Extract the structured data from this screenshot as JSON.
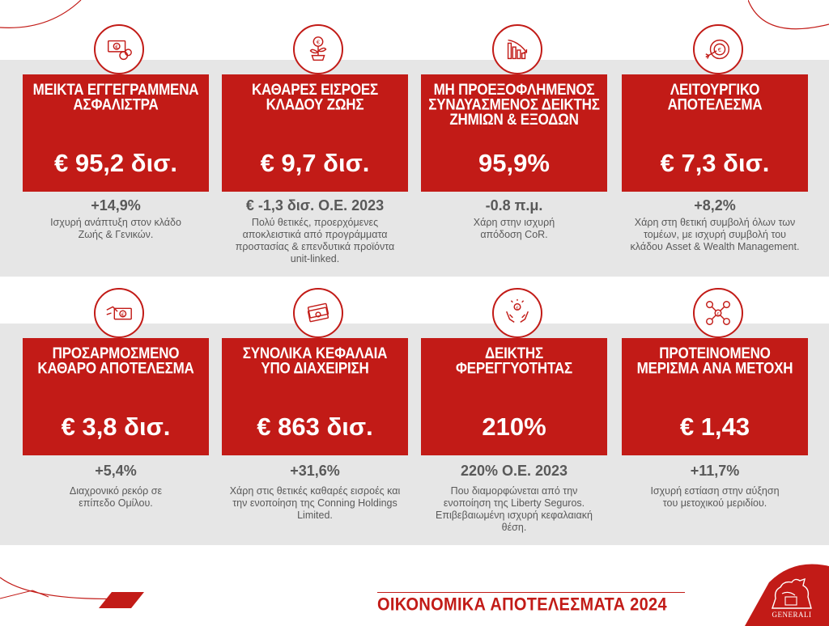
{
  "cards": [
    {
      "title": "ΜΕΙΚΤΑ ΕΓΓΕΓΡΑΜΜΕΝΑ ΑΣΦΑΛΙΣΤΡΑ",
      "value": "€ 95,2 δισ.",
      "stat": "+14,9%",
      "desc": "Ισχυρή ανάπτυξη στον κλάδο Ζωής & Γενικών.",
      "icon": "euro-notes-icon"
    },
    {
      "title": "ΚΑΘΑΡΕΣ ΕΙΣΡΟΕΣ ΚΛΑΔΟΥ ΖΩΗΣ",
      "value": "€ 9,7 δισ.",
      "stat": "€ -1,3 δισ. Ο.Ε. 2023",
      "desc": "Πολύ θετικές, προερχόμενες αποκλειστικά από προγράμματα προστασίας & επενδυτικά προϊόντα unit-linked.",
      "icon": "euro-plant-icon"
    },
    {
      "title": "ΜΗ ΠΡΟΕΞΟΦΛΗΜΕΝΟΣ ΣΥΝΔΥΑΣΜΕΝΟΣ ΔΕΙΚΤΗΣ ΖΗΜΙΩΝ & ΕΞΟΔΩΝ",
      "value": "95,9%",
      "stat": "-0.8 π.μ.",
      "desc": "Χάρη στην ισχυρή απόδοση CoR.",
      "icon": "declining-bars-icon"
    },
    {
      "title": "ΛΕΙΤΟΥΡΓΙΚΟ ΑΠΟΤΕΛΕΣΜΑ",
      "value": "€ 7,3 δισ.",
      "stat": "+8,2%",
      "desc": "Χάρη στη θετική συμβολή όλων των τομέων, με ισχυρή συμβολή του κλάδου Asset & Wealth Management.",
      "icon": "euro-target-icon"
    },
    {
      "title": "ΠΡΟΣΑΡΜΟΣΜΕΝΟ ΚΑΘΑΡΟ ΑΠΟΤΕΛΕΣΜΑ",
      "value": "€ 3,8 δισ.",
      "stat": "+5,4%",
      "desc": "Διαχρονικό ρεκόρ σε επίπεδο Ομίλου.",
      "icon": "hand-euro-note-icon"
    },
    {
      "title": "ΣΥΝΟΛΙΚΑ ΚΕΦΑΛΑΙΑ ΥΠΟ ΔΙΑΧΕΙΡΙΣΗ",
      "value": "€ 863 δισ.",
      "stat": "+31,6%",
      "desc": "Χάρη στις θετικές καθαρές εισροές και την ενοποίηση της Conning Holdings Limited.",
      "icon": "cash-stack-icon"
    },
    {
      "title": "ΔΕΙΚΤΗΣ ΦΕΡΕΓΓΥΟΤΗΤΑΣ",
      "value": "210%",
      "stat": "220% Ο.Ε. 2023",
      "desc": "Που διαμορφώνεται από την ενοποίηση της Liberty Seguros. Επιβεβαιωμένη ισχυρή κεφαλαιακή θέση.",
      "icon": "hands-euro-icon"
    },
    {
      "title": "ΠΡΟΤΕΙΝΟΜΕΝΟ ΜΕΡΙΣΜΑ ΑΝΑ ΜΕΤΟΧΗ",
      "value": "€ 1,43",
      "stat": "+11,7%",
      "desc": "Ισχυρή εστίαση στην αύξηση του μετοχικού μεριδίου.",
      "icon": "shareholders-euro-icon"
    }
  ],
  "footer": {
    "title": "ΟΙΚΟΝΟΜΙΚΑ ΑΠΟΤΕΛΕΣΜΑΤΑ 2024",
    "logo_text": "GENERALI"
  },
  "colors": {
    "brand_red": "#c21b17",
    "band_gray": "#e6e6e6",
    "text_gray": "#595959"
  }
}
